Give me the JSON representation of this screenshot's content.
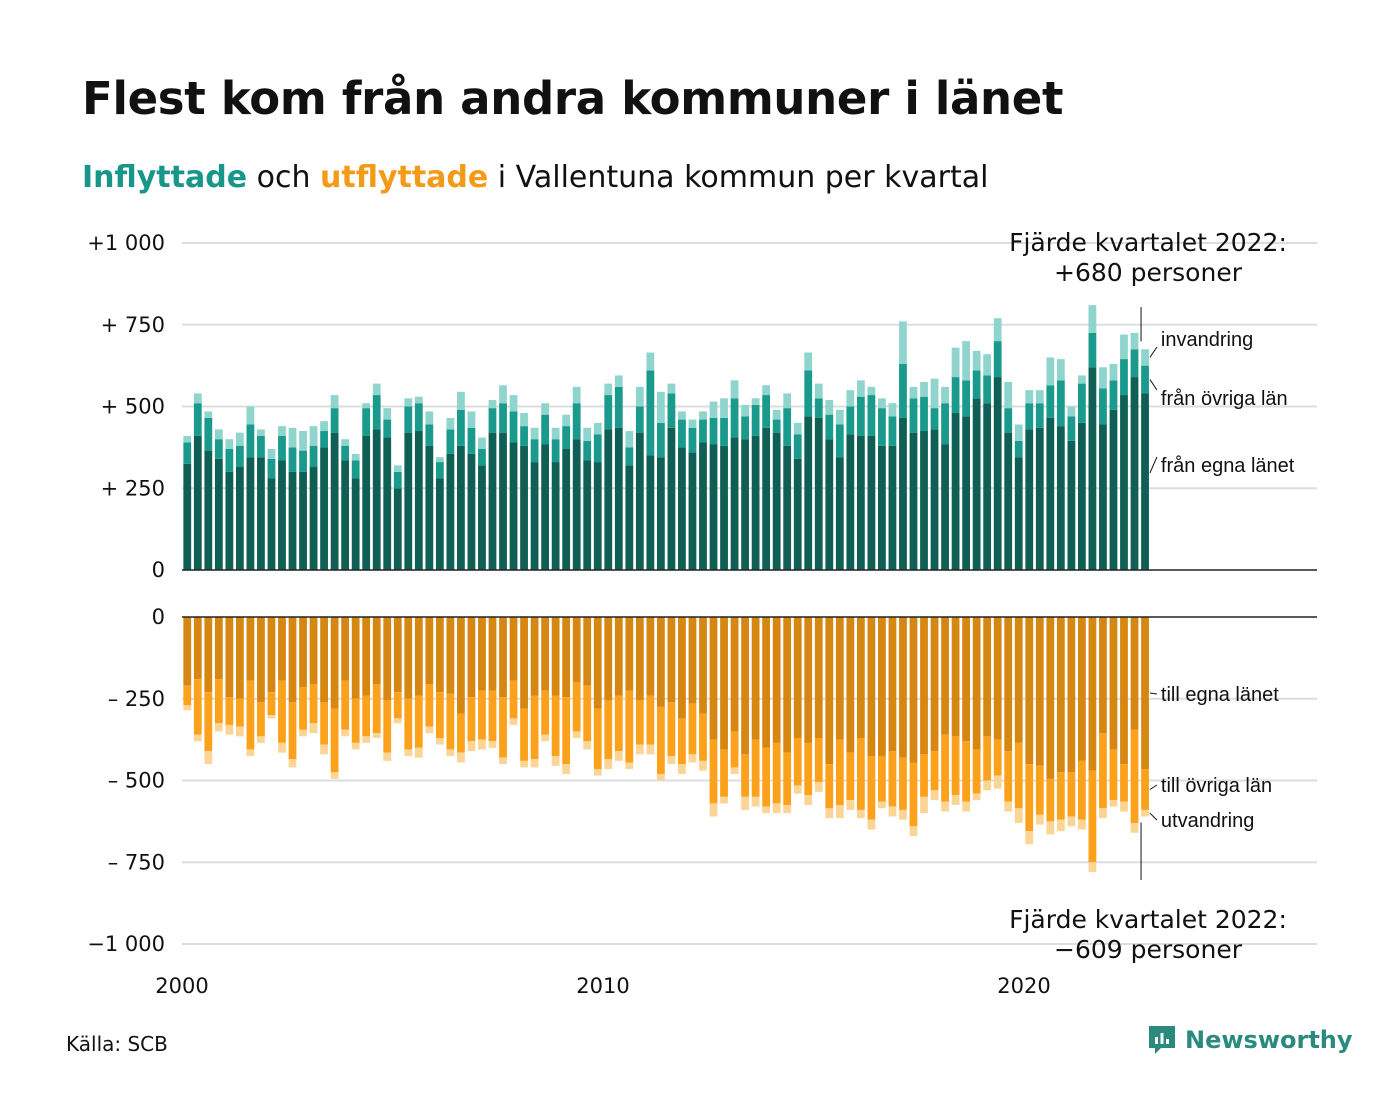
{
  "title": "Flest kom från andra kommuner i länet",
  "subtitle": {
    "inflyttade": "Inflyttade",
    "och": " och ",
    "utflyttade": "utflyttade",
    "rest": " i Vallentuna kommun per kvartal"
  },
  "source": "Källa: SCB",
  "brand": "Newsworthy",
  "colors": {
    "in_egna": "#0f5f55",
    "in_ovriga": "#1a9a8c",
    "in_invandring": "#8fd5cd",
    "out_egna": "#d58712",
    "out_ovriga": "#fba11c",
    "out_utvandring": "#fbd596",
    "grid": "#dddddd",
    "axis": "#222222"
  },
  "annotations": {
    "top_line1": "Fjärde kvartalet 2022:",
    "top_line2": "+680 personer",
    "bottom_line1": "Fjärde kvartalet 2022:",
    "bottom_line2": "−609 personer"
  },
  "chart_data": {
    "type": "bar",
    "stacked": true,
    "diverging": true,
    "x_label": "",
    "y_label": "",
    "x_ticks": [
      "2000",
      "2010",
      "2020"
    ],
    "y_ticks_top": [
      "+1 000",
      "+  750",
      "+  500",
      "+  250",
      "0"
    ],
    "y_ticks_bottom": [
      "0",
      "–  250",
      "–  500",
      "–  750",
      "−1 000"
    ],
    "ylim_top": [
      0,
      1000
    ],
    "ylim_bottom": [
      -1000,
      0
    ],
    "grid": true,
    "x_start": "2000 Q1",
    "x_end": "2022 Q4",
    "inflyttade": {
      "series_names": [
        "från egna länet",
        "från övriga län",
        "invandring"
      ],
      "egna": [
        325,
        410,
        365,
        340,
        300,
        315,
        345,
        345,
        280,
        335,
        300,
        300,
        315,
        375,
        420,
        335,
        280,
        410,
        430,
        405,
        250,
        420,
        425,
        380,
        280,
        355,
        380,
        355,
        320,
        420,
        420,
        390,
        380,
        330,
        385,
        330,
        370,
        400,
        335,
        330,
        430,
        435,
        320,
        420,
        350,
        345,
        435,
        375,
        360,
        390,
        385,
        380,
        405,
        400,
        410,
        435,
        420,
        380,
        340,
        470,
        465,
        400,
        345,
        415,
        410,
        410,
        380,
        380,
        465,
        420,
        425,
        430,
        385,
        480,
        470,
        525,
        510,
        590,
        420,
        345,
        430,
        435,
        465,
        440,
        395,
        450,
        620,
        445,
        490,
        535,
        590,
        540
      ],
      "ovriga": [
        65,
        100,
        100,
        60,
        70,
        65,
        100,
        65,
        60,
        75,
        75,
        65,
        65,
        50,
        75,
        45,
        55,
        85,
        105,
        55,
        50,
        80,
        85,
        65,
        50,
        75,
        110,
        80,
        50,
        75,
        90,
        95,
        60,
        70,
        90,
        70,
        70,
        110,
        60,
        85,
        105,
        125,
        55,
        80,
        260,
        105,
        105,
        85,
        75,
        70,
        80,
        85,
        120,
        70,
        95,
        100,
        40,
        115,
        75,
        140,
        60,
        75,
        100,
        85,
        120,
        125,
        115,
        90,
        165,
        105,
        105,
        65,
        125,
        110,
        110,
        85,
        85,
        110,
        75,
        50,
        80,
        75,
        100,
        140,
        75,
        120,
        105,
        110,
        90,
        110,
        85,
        85
      ],
      "invandring": [
        20,
        30,
        20,
        30,
        30,
        40,
        55,
        20,
        30,
        30,
        60,
        60,
        60,
        30,
        40,
        20,
        20,
        15,
        35,
        35,
        20,
        25,
        20,
        40,
        15,
        35,
        55,
        50,
        35,
        25,
        55,
        50,
        40,
        35,
        35,
        35,
        35,
        50,
        40,
        35,
        35,
        35,
        50,
        60,
        55,
        95,
        30,
        25,
        25,
        25,
        50,
        60,
        55,
        35,
        20,
        30,
        30,
        45,
        35,
        55,
        45,
        45,
        45,
        50,
        50,
        25,
        30,
        40,
        130,
        35,
        45,
        90,
        50,
        90,
        120,
        60,
        65,
        70,
        80,
        50,
        40,
        40,
        85,
        65,
        30,
        25,
        85,
        65,
        50,
        75,
        50,
        50
      ]
    },
    "utflyttade": {
      "series_names": [
        "till egna länet",
        "till övriga län",
        "utvandring"
      ],
      "egna": [
        210,
        190,
        230,
        190,
        245,
        250,
        195,
        260,
        230,
        195,
        260,
        215,
        205,
        260,
        280,
        195,
        250,
        240,
        205,
        255,
        230,
        250,
        240,
        205,
        230,
        235,
        295,
        245,
        225,
        225,
        245,
        195,
        280,
        240,
        225,
        240,
        245,
        200,
        210,
        280,
        255,
        240,
        225,
        255,
        240,
        275,
        260,
        310,
        265,
        295,
        375,
        405,
        350,
        420,
        375,
        400,
        385,
        415,
        370,
        385,
        370,
        450,
        375,
        415,
        370,
        425,
        425,
        410,
        430,
        445,
        420,
        410,
        360,
        365,
        380,
        405,
        365,
        375,
        410,
        385,
        450,
        455,
        495,
        475,
        475,
        440,
        470,
        355,
        405,
        450,
        345,
        465
      ],
      "ovriga": [
        60,
        170,
        180,
        135,
        85,
        85,
        210,
        105,
        70,
        190,
        175,
        130,
        120,
        130,
        195,
        150,
        135,
        125,
        150,
        160,
        80,
        155,
        160,
        130,
        140,
        170,
        120,
        135,
        150,
        155,
        185,
        115,
        160,
        195,
        135,
        185,
        205,
        150,
        170,
        185,
        180,
        170,
        220,
        135,
        150,
        205,
        165,
        140,
        155,
        145,
        195,
        145,
        110,
        130,
        175,
        180,
        185,
        160,
        145,
        160,
        135,
        135,
        200,
        145,
        220,
        195,
        140,
        170,
        160,
        195,
        130,
        120,
        205,
        180,
        185,
        135,
        135,
        110,
        155,
        200,
        205,
        150,
        130,
        145,
        135,
        180,
        280,
        230,
        155,
        115,
        285,
        125
      ],
      "utvandring": [
        15,
        20,
        40,
        25,
        30,
        30,
        20,
        20,
        10,
        30,
        25,
        20,
        30,
        30,
        20,
        20,
        20,
        20,
        15,
        25,
        15,
        20,
        30,
        20,
        20,
        20,
        30,
        30,
        30,
        20,
        20,
        20,
        20,
        25,
        20,
        30,
        30,
        20,
        25,
        20,
        30,
        30,
        20,
        30,
        30,
        20,
        25,
        30,
        25,
        30,
        40,
        20,
        20,
        40,
        30,
        20,
        30,
        25,
        25,
        30,
        30,
        30,
        40,
        30,
        25,
        30,
        20,
        30,
        30,
        30,
        50,
        30,
        30,
        30,
        30,
        20,
        30,
        40,
        30,
        45,
        40,
        30,
        40,
        35,
        30,
        30,
        30,
        30,
        20,
        30,
        30,
        20
      ]
    },
    "labels_in": [
      "invandring",
      "från övriga län",
      "från egna länet"
    ],
    "labels_out": [
      "till egna länet",
      "till övriga län",
      "utvandring"
    ]
  }
}
